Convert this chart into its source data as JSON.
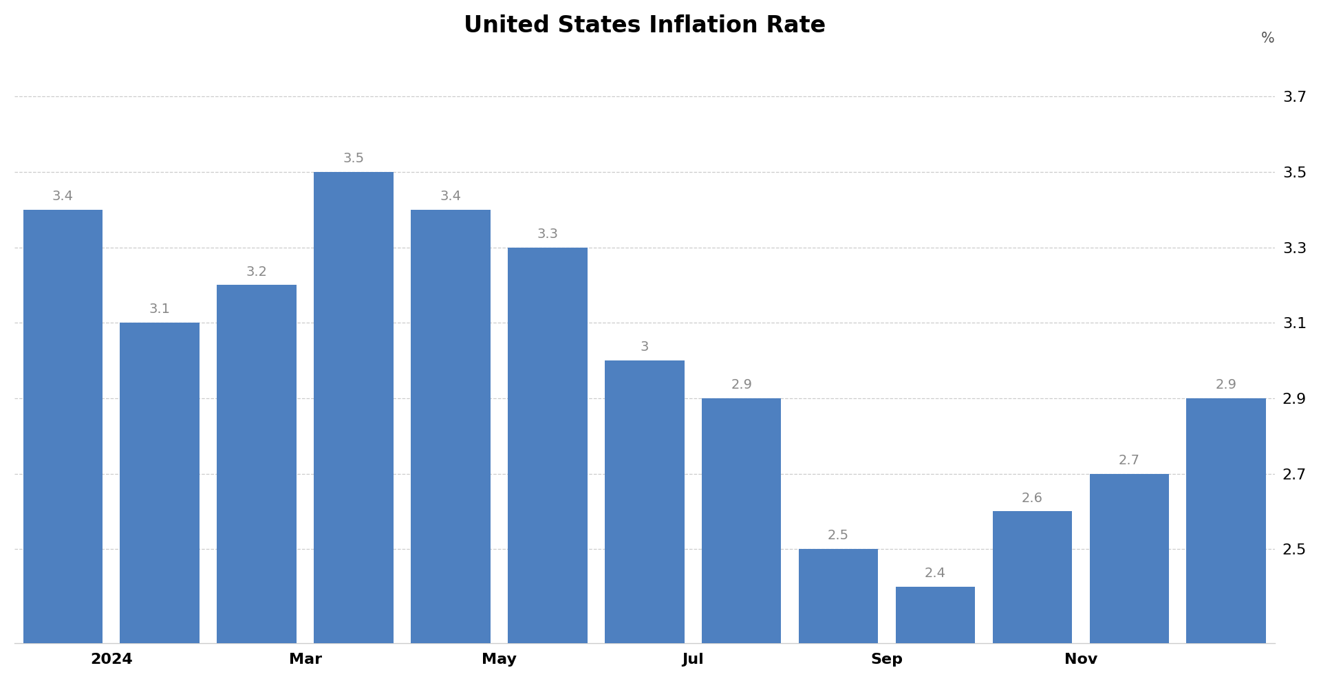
{
  "title": "United States Inflation Rate",
  "values": [
    3.4,
    3.1,
    3.2,
    3.5,
    3.4,
    3.3,
    3.0,
    2.9,
    2.5,
    2.4,
    2.6,
    2.7,
    2.9
  ],
  "bar_labels": [
    "3.4",
    "3.1",
    "3.2",
    "3.5",
    "3.4",
    "3.3",
    "3",
    "2.9",
    "2.5",
    "2.4",
    "2.6",
    "2.7",
    "2.9"
  ],
  "bar_color": "#4e80c0",
  "background_color": "#ffffff",
  "ylabel": "%",
  "ylim_min": 2.25,
  "ylim_max": 3.82,
  "yticks": [
    2.5,
    2.7,
    2.9,
    3.1,
    3.3,
    3.5,
    3.7
  ],
  "title_fontsize": 24,
  "label_fontsize": 14,
  "tick_fontsize": 16,
  "ylabel_fontsize": 15,
  "grid_color": "#cccccc",
  "bar_label_color": "#888888",
  "x_tick_positions": [
    0.5,
    2.5,
    4.5,
    6.5,
    8.5,
    10.5
  ],
  "x_tick_labels": [
    "2024",
    "Mar",
    "May",
    "Jul",
    "Sep",
    "Nov"
  ]
}
